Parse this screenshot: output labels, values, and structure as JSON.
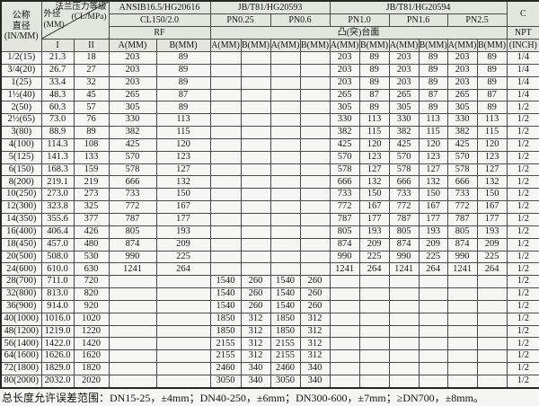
{
  "table": {
    "header": {
      "nominal_l1": "公称",
      "nominal_l2": "直径",
      "nominal_l3": "(IN/MM)",
      "diag_top1": "法兰压力等级",
      "diag_top2": "(CL/MPa)",
      "diag_left1": "外径",
      "diag_left2": "(MM)",
      "col_I": "I",
      "col_II": "II",
      "std_ansi": "ANSIB16.5/HG20616",
      "std_jb1": "JB/T81/HG20593",
      "std_jb2": "JB/T81/HG20594",
      "cls_cl150": "CL150/2.0",
      "cls_pn025": "PN0.25",
      "cls_pn06": "PN0.6",
      "cls_pn10": "PN1.0",
      "cls_pn16": "PN1.6",
      "cls_pn25": "PN2.5",
      "face_rf": "RF",
      "face_raised": "凸(突)台面",
      "c": "C",
      "npt": "NPT",
      "inch": "(INCH)",
      "a_label": "A(MM)",
      "b_label": "B(MM)"
    },
    "rows": [
      [
        "1/2(15)",
        "21.3",
        "18",
        "203",
        "89",
        "",
        "",
        "",
        "",
        "203",
        "89",
        "203",
        "89",
        "203",
        "89",
        "1/4"
      ],
      [
        "3/4(20)",
        "26.7",
        "27",
        "203",
        "89",
        "",
        "",
        "",
        "",
        "203",
        "89",
        "203",
        "89",
        "203",
        "89",
        "1/4"
      ],
      [
        "1(25)",
        "33.4",
        "32",
        "203",
        "89",
        "",
        "",
        "",
        "",
        "203",
        "89",
        "203",
        "89",
        "203",
        "89",
        "1/4"
      ],
      [
        "1½(40)",
        "48.3",
        "45",
        "265",
        "87",
        "",
        "",
        "",
        "",
        "265",
        "87",
        "265",
        "87",
        "265",
        "87",
        "1/4"
      ],
      [
        "2(50)",
        "60.3",
        "57",
        "305",
        "89",
        "",
        "",
        "",
        "",
        "305",
        "89",
        "305",
        "89",
        "305",
        "89",
        "1/2"
      ],
      [
        "2½(65)",
        "73.0",
        "76",
        "330",
        "113",
        "",
        "",
        "",
        "",
        "330",
        "113",
        "330",
        "113",
        "330",
        "113",
        "1/2"
      ],
      [
        "3(80)",
        "88.9",
        "89",
        "382",
        "115",
        "",
        "",
        "",
        "",
        "382",
        "115",
        "382",
        "115",
        "382",
        "115",
        "1/2"
      ],
      [
        "4(100)",
        "114.3",
        "108",
        "425",
        "120",
        "",
        "",
        "",
        "",
        "425",
        "120",
        "425",
        "120",
        "425",
        "120",
        "1/2"
      ],
      [
        "5(125)",
        "141.3",
        "133",
        "570",
        "123",
        "",
        "",
        "",
        "",
        "570",
        "123",
        "570",
        "123",
        "570",
        "123",
        "1/2"
      ],
      [
        "6(150)",
        "168.3",
        "159",
        "578",
        "127",
        "",
        "",
        "",
        "",
        "578",
        "127",
        "578",
        "127",
        "578",
        "127",
        "1/2"
      ],
      [
        "8(200)",
        "219.1",
        "219",
        "666",
        "132",
        "",
        "",
        "",
        "",
        "666",
        "132",
        "666",
        "132",
        "666",
        "132",
        "1/2"
      ],
      [
        "10(250)",
        "273.0",
        "273",
        "733",
        "150",
        "",
        "",
        "",
        "",
        "733",
        "150",
        "733",
        "150",
        "733",
        "150",
        "1/2"
      ],
      [
        "12(300)",
        "323.8",
        "325",
        "772",
        "167",
        "",
        "",
        "",
        "",
        "772",
        "167",
        "772",
        "167",
        "772",
        "167",
        "1/2"
      ],
      [
        "14(350)",
        "355.6",
        "377",
        "787",
        "177",
        "",
        "",
        "",
        "",
        "787",
        "177",
        "787",
        "177",
        "787",
        "177",
        "1/2"
      ],
      [
        "16(400)",
        "406.4",
        "426",
        "805",
        "193",
        "",
        "",
        "",
        "",
        "805",
        "193",
        "805",
        "193",
        "805",
        "193",
        "1/2"
      ],
      [
        "18(450)",
        "457.0",
        "480",
        "874",
        "209",
        "",
        "",
        "",
        "",
        "874",
        "209",
        "874",
        "209",
        "874",
        "209",
        "1/2"
      ],
      [
        "20(500)",
        "508.0",
        "530",
        "990",
        "225",
        "",
        "",
        "",
        "",
        "990",
        "225",
        "990",
        "225",
        "990",
        "225",
        "1/2"
      ],
      [
        "24(600)",
        "610.0",
        "630",
        "1241",
        "264",
        "",
        "",
        "",
        "",
        "1241",
        "264",
        "1241",
        "264",
        "1241",
        "264",
        "1/2"
      ],
      [
        "28(700)",
        "711.0",
        "720",
        "",
        "",
        "1540",
        "260",
        "1540",
        "260",
        "",
        "",
        "",
        "",
        "",
        "",
        "1/2"
      ],
      [
        "32(800)",
        "813.0",
        "820",
        "",
        "",
        "1540",
        "260",
        "1540",
        "260",
        "",
        "",
        "",
        "",
        "",
        "",
        "1/2"
      ],
      [
        "36(900)",
        "914.0",
        "920",
        "",
        "",
        "1540",
        "260",
        "1540",
        "260",
        "",
        "",
        "",
        "",
        "",
        "",
        "1/2"
      ],
      [
        "40(1000)",
        "1016.0",
        "1020",
        "",
        "",
        "1850",
        "312",
        "1850",
        "312",
        "",
        "",
        "",
        "",
        "",
        "",
        "1/2"
      ],
      [
        "48(1200)",
        "1219.0",
        "1220",
        "",
        "",
        "1850",
        "312",
        "1850",
        "312",
        "",
        "",
        "",
        "",
        "",
        "",
        "1/2"
      ],
      [
        "56(1400)",
        "1422.0",
        "1420",
        "",
        "",
        "2155",
        "312",
        "2155",
        "312",
        "",
        "",
        "",
        "",
        "",
        "",
        "1/2"
      ],
      [
        "64(1600)",
        "1626.0",
        "1620",
        "",
        "",
        "2155",
        "312",
        "2155",
        "312",
        "",
        "",
        "",
        "",
        "",
        "",
        "1/2"
      ],
      [
        "72(1800)",
        "1829.0",
        "1820",
        "",
        "",
        "2460",
        "340",
        "2460",
        "340",
        "",
        "",
        "",
        "",
        "",
        "",
        "1/2"
      ],
      [
        "80(2000)",
        "2032.0",
        "2020",
        "",
        "",
        "3050",
        "340",
        "3050",
        "340",
        "",
        "",
        "",
        "",
        "",
        "",
        "1/2"
      ]
    ],
    "footer": "总长度允许误差范围：DN15-25，±4mm；DN40-250，±6mm；DN300-600，±7mm；≥DN700，±8mm。",
    "colors": {
      "header_bg": "#e2e6df",
      "body_bg": "#f6f7f3",
      "border": "#4a4a4a"
    }
  }
}
